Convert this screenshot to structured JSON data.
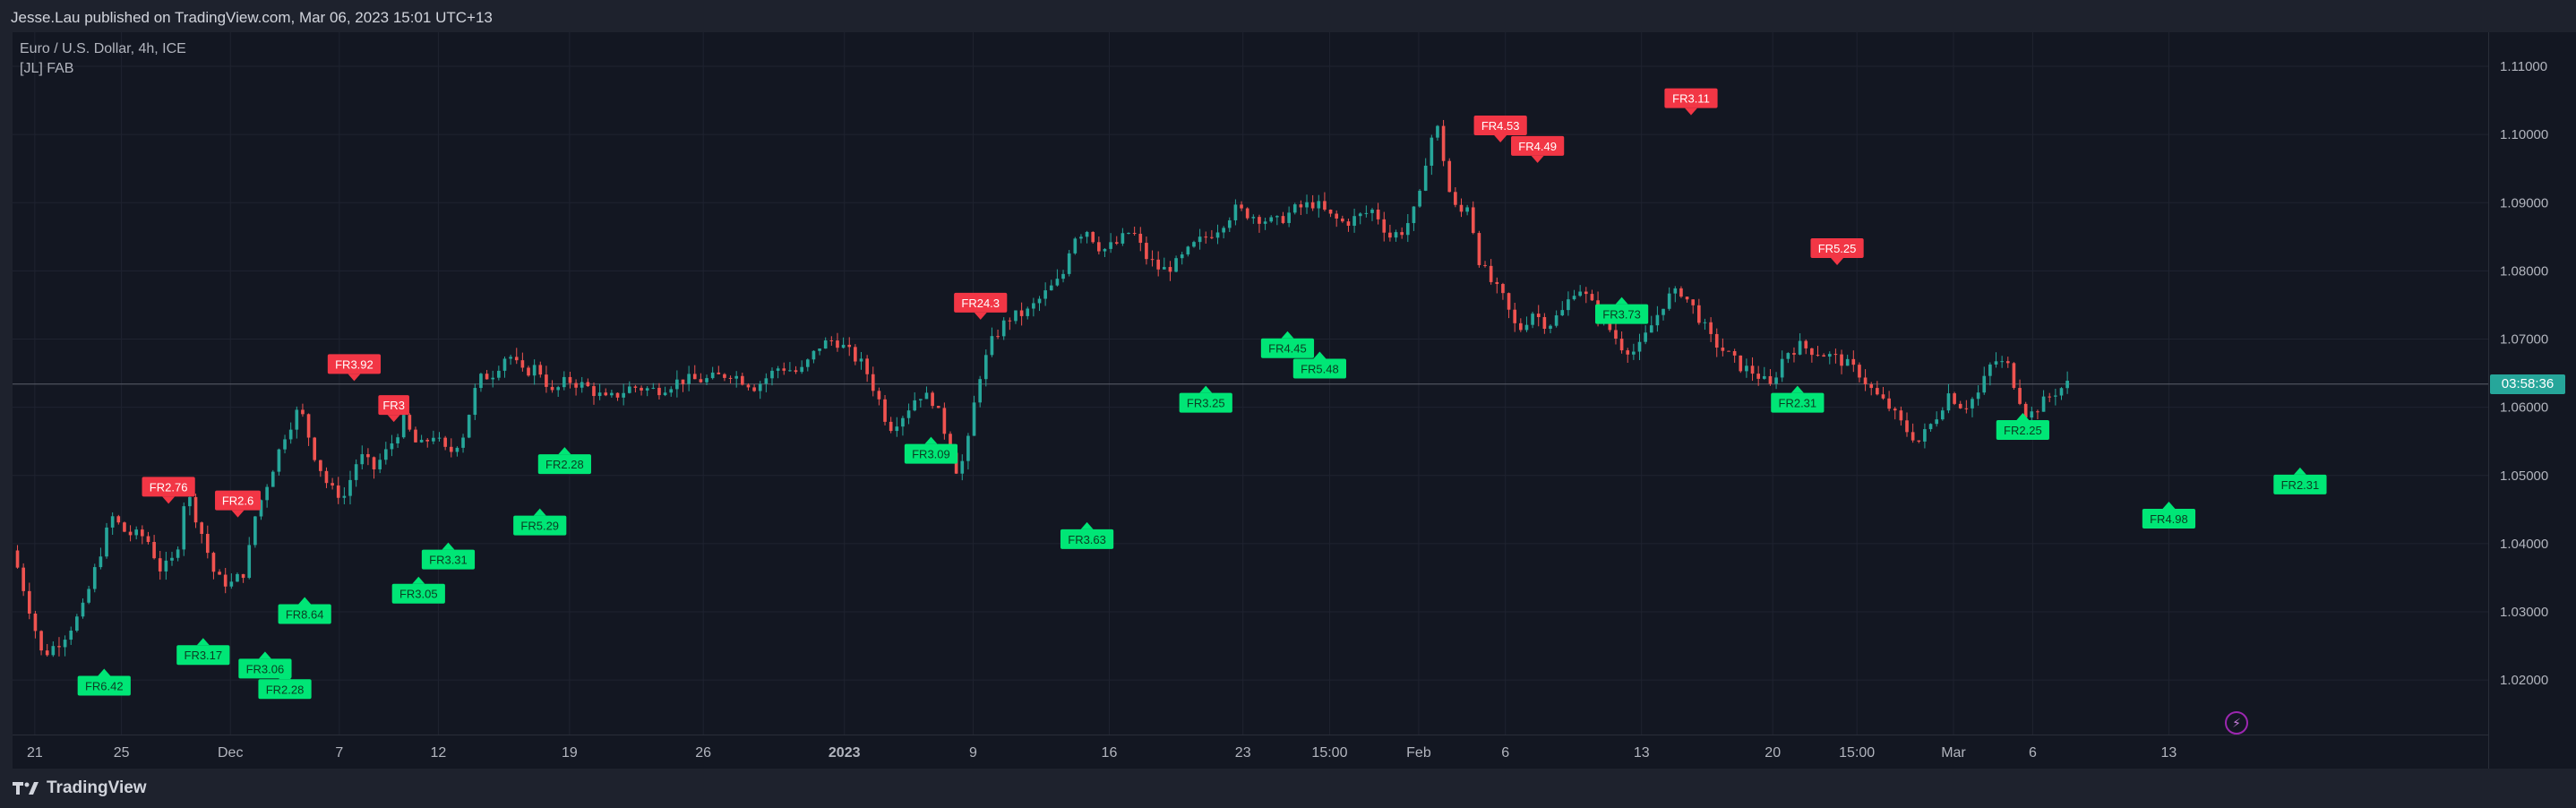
{
  "header": {
    "publisher_text": "Jesse.Lau published on TradingView.com, Mar 06, 2023 15:01 UTC+13"
  },
  "legend": {
    "symbol_line": "Euro / U.S. Dollar, 4h, ICE",
    "indicator_line": "[JL] FAB"
  },
  "footer": {
    "brand": "TradingView",
    "logo_icon": "tradingview-logo-icon"
  },
  "last_price": "03:58:36",
  "colors": {
    "up": "#26a69a",
    "down": "#ef5350",
    "label_up": "#00e676",
    "label_down": "#f23645",
    "background": "#131722",
    "grid": "#1f2330"
  },
  "chart_data": {
    "type": "candlestick",
    "ylim": [
      1.012,
      1.115
    ],
    "price_ticks": [
      "1.11000",
      "1.10000",
      "1.09000",
      "1.08000",
      "1.07000",
      "1.06000",
      "1.05000",
      "1.04000",
      "1.03000",
      "1.02000"
    ],
    "time_ticks": [
      {
        "label": "21",
        "x": 0.009
      },
      {
        "label": "25",
        "x": 0.044
      },
      {
        "label": "Dec",
        "x": 0.088
      },
      {
        "label": "7",
        "x": 0.132
      },
      {
        "label": "12",
        "x": 0.172
      },
      {
        "label": "19",
        "x": 0.225
      },
      {
        "label": "26",
        "x": 0.279
      },
      {
        "label": "2023",
        "x": 0.336
      },
      {
        "label": "9",
        "x": 0.388
      },
      {
        "label": "16",
        "x": 0.443
      },
      {
        "label": "23",
        "x": 0.497
      },
      {
        "label": "15:00",
        "x": 0.532
      },
      {
        "label": "Feb",
        "x": 0.568
      },
      {
        "label": "6",
        "x": 0.603
      },
      {
        "label": "13",
        "x": 0.658
      },
      {
        "label": "20",
        "x": 0.711
      },
      {
        "label": "15:00",
        "x": 0.745
      },
      {
        "label": "Mar",
        "x": 0.784
      },
      {
        "label": "6",
        "x": 0.816
      },
      {
        "label": "13",
        "x": 0.871
      }
    ],
    "last_price_value": 1.0634,
    "path": [
      [
        0.0,
        1.039
      ],
      [
        0.008,
        1.029
      ],
      [
        0.012,
        1.0235
      ],
      [
        0.02,
        1.026
      ],
      [
        0.028,
        1.03
      ],
      [
        0.034,
        1.037
      ],
      [
        0.04,
        1.044
      ],
      [
        0.046,
        1.0415
      ],
      [
        0.054,
        1.041
      ],
      [
        0.06,
        1.036
      ],
      [
        0.066,
        1.038
      ],
      [
        0.07,
        1.048
      ],
      [
        0.076,
        1.042
      ],
      [
        0.082,
        1.035
      ],
      [
        0.088,
        1.034
      ],
      [
        0.094,
        1.036
      ],
      [
        0.098,
        1.044
      ],
      [
        0.104,
        1.05
      ],
      [
        0.11,
        1.056
      ],
      [
        0.116,
        1.06
      ],
      [
        0.122,
        1.053
      ],
      [
        0.128,
        1.048
      ],
      [
        0.134,
        1.047
      ],
      [
        0.14,
        1.053
      ],
      [
        0.146,
        1.051
      ],
      [
        0.152,
        1.054
      ],
      [
        0.158,
        1.058
      ],
      [
        0.164,
        1.054
      ],
      [
        0.17,
        1.056
      ],
      [
        0.176,
        1.053
      ],
      [
        0.182,
        1.056
      ],
      [
        0.188,
        1.064
      ],
      [
        0.194,
        1.065
      ],
      [
        0.2,
        1.068
      ],
      [
        0.206,
        1.065
      ],
      [
        0.212,
        1.066
      ],
      [
        0.218,
        1.062
      ],
      [
        0.224,
        1.064
      ],
      [
        0.232,
        1.063
      ],
      [
        0.24,
        1.061
      ],
      [
        0.25,
        1.063
      ],
      [
        0.26,
        1.0625
      ],
      [
        0.27,
        1.064
      ],
      [
        0.28,
        1.064
      ],
      [
        0.29,
        1.065
      ],
      [
        0.3,
        1.063
      ],
      [
        0.31,
        1.066
      ],
      [
        0.318,
        1.065
      ],
      [
        0.326,
        1.069
      ],
      [
        0.332,
        1.07
      ],
      [
        0.338,
        1.068
      ],
      [
        0.344,
        1.066
      ],
      [
        0.35,
        1.061
      ],
      [
        0.354,
        1.057
      ],
      [
        0.36,
        1.059
      ],
      [
        0.366,
        1.062
      ],
      [
        0.372,
        1.061
      ],
      [
        0.378,
        1.055
      ],
      [
        0.382,
        1.05
      ],
      [
        0.386,
        1.055
      ],
      [
        0.39,
        1.064
      ],
      [
        0.396,
        1.07
      ],
      [
        0.402,
        1.073
      ],
      [
        0.41,
        1.074
      ],
      [
        0.418,
        1.077
      ],
      [
        0.424,
        1.079
      ],
      [
        0.428,
        1.085
      ],
      [
        0.434,
        1.086
      ],
      [
        0.44,
        1.083
      ],
      [
        0.446,
        1.084
      ],
      [
        0.452,
        1.086
      ],
      [
        0.458,
        1.082
      ],
      [
        0.464,
        1.08
      ],
      [
        0.47,
        1.081
      ],
      [
        0.478,
        1.084
      ],
      [
        0.486,
        1.086
      ],
      [
        0.494,
        1.089
      ],
      [
        0.502,
        1.088
      ],
      [
        0.51,
        1.087
      ],
      [
        0.518,
        1.089
      ],
      [
        0.526,
        1.09
      ],
      [
        0.532,
        1.088
      ],
      [
        0.538,
        1.087
      ],
      [
        0.544,
        1.088
      ],
      [
        0.55,
        1.089
      ],
      [
        0.556,
        1.085
      ],
      [
        0.562,
        1.086
      ],
      [
        0.568,
        1.09
      ],
      [
        0.572,
        1.099
      ],
      [
        0.576,
        1.101
      ],
      [
        0.58,
        1.092
      ],
      [
        0.584,
        1.088
      ],
      [
        0.588,
        1.09
      ],
      [
        0.592,
        1.082
      ],
      [
        0.596,
        1.079
      ],
      [
        0.602,
        1.076
      ],
      [
        0.608,
        1.071
      ],
      [
        0.614,
        1.074
      ],
      [
        0.62,
        1.072
      ],
      [
        0.626,
        1.074
      ],
      [
        0.632,
        1.078
      ],
      [
        0.638,
        1.075
      ],
      [
        0.644,
        1.072
      ],
      [
        0.65,
        1.069
      ],
      [
        0.656,
        1.068
      ],
      [
        0.662,
        1.072
      ],
      [
        0.668,
        1.076
      ],
      [
        0.674,
        1.077
      ],
      [
        0.68,
        1.074
      ],
      [
        0.686,
        1.07
      ],
      [
        0.692,
        1.068
      ],
      [
        0.698,
        1.066
      ],
      [
        0.704,
        1.065
      ],
      [
        0.71,
        1.063
      ],
      [
        0.716,
        1.068
      ],
      [
        0.722,
        1.069
      ],
      [
        0.73,
        1.068
      ],
      [
        0.738,
        1.067
      ],
      [
        0.746,
        1.065
      ],
      [
        0.752,
        1.062
      ],
      [
        0.758,
        1.06
      ],
      [
        0.764,
        1.057
      ],
      [
        0.77,
        1.055
      ],
      [
        0.776,
        1.058
      ],
      [
        0.782,
        1.062
      ],
      [
        0.788,
        1.06
      ],
      [
        0.794,
        1.062
      ],
      [
        0.8,
        1.067
      ],
      [
        0.806,
        1.066
      ],
      [
        0.81,
        1.062
      ],
      [
        0.814,
        1.0585
      ],
      [
        0.818,
        1.06
      ],
      [
        0.824,
        1.062
      ],
      [
        0.83,
        1.0634
      ]
    ],
    "fr_labels": [
      {
        "text": "FR6.42",
        "x": 0.037,
        "side": "below",
        "value": 1.0235
      },
      {
        "text": "FR2.76",
        "x": 0.063,
        "side": "above",
        "value": 1.044
      },
      {
        "text": "FR3.17",
        "x": 0.077,
        "side": "below",
        "value": 1.028
      },
      {
        "text": "FR2.6",
        "x": 0.091,
        "side": "above",
        "value": 1.042
      },
      {
        "text": "FR3.06",
        "x": 0.102,
        "side": "below",
        "value": 1.026
      },
      {
        "text": "FR2.28",
        "x": 0.11,
        "side": "below",
        "value": 1.023
      },
      {
        "text": "FR8.64",
        "x": 0.118,
        "side": "below",
        "value": 1.034
      },
      {
        "text": "FR3.92",
        "x": 0.138,
        "side": "above",
        "value": 1.062
      },
      {
        "text": "FR3",
        "x": 0.154,
        "side": "above",
        "value": 1.056
      },
      {
        "text": "FR3.05",
        "x": 0.164,
        "side": "below",
        "value": 1.037
      },
      {
        "text": "FR3.31",
        "x": 0.176,
        "side": "below",
        "value": 1.042
      },
      {
        "text": "FR5.29",
        "x": 0.213,
        "side": "below",
        "value": 1.047
      },
      {
        "text": "FR2.28",
        "x": 0.223,
        "side": "below",
        "value": 1.056
      },
      {
        "text": "FR3.09",
        "x": 0.371,
        "side": "below",
        "value": 1.0575
      },
      {
        "text": "FR24.3",
        "x": 0.391,
        "side": "above",
        "value": 1.071
      },
      {
        "text": "FR3.63",
        "x": 0.434,
        "side": "below",
        "value": 1.045
      },
      {
        "text": "FR3.25",
        "x": 0.482,
        "side": "below",
        "value": 1.065
      },
      {
        "text": "FR4.45",
        "x": 0.515,
        "side": "below",
        "value": 1.073
      },
      {
        "text": "FR5.48",
        "x": 0.528,
        "side": "below",
        "value": 1.07
      },
      {
        "text": "FR4.53",
        "x": 0.601,
        "side": "above",
        "value": 1.097
      },
      {
        "text": "FR4.49",
        "x": 0.616,
        "side": "above",
        "value": 1.094
      },
      {
        "text": "FR3.11",
        "x": 0.678,
        "side": "above",
        "value": 1.101
      },
      {
        "text": "FR3.73",
        "x": 0.65,
        "side": "below",
        "value": 1.078
      },
      {
        "text": "FR5.25",
        "x": 0.737,
        "side": "above",
        "value": 1.079
      },
      {
        "text": "FR2.31",
        "x": 0.721,
        "side": "below",
        "value": 1.065
      },
      {
        "text": "FR2.25",
        "x": 0.812,
        "side": "below",
        "value": 1.061
      },
      {
        "text": "FR4.98",
        "x": 0.871,
        "side": "below",
        "value": 1.048
      },
      {
        "text": "FR2.31",
        "x": 0.924,
        "side": "below",
        "value": 1.053
      }
    ]
  }
}
